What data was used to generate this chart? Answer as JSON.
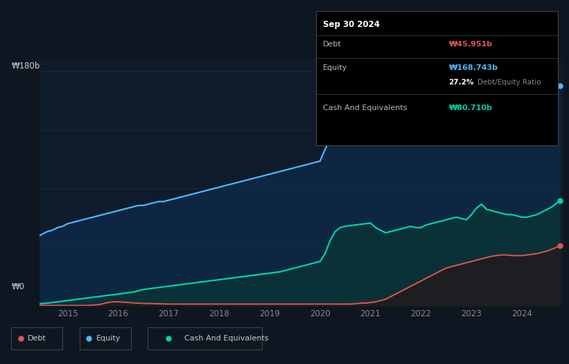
{
  "background_color": "#0e1621",
  "plot_bg_color": "#0d1b2a",
  "y_label_top": "₩180b",
  "y_label_bottom": "₩0",
  "x_ticks": [
    2015,
    2016,
    2017,
    2018,
    2019,
    2020,
    2021,
    2022,
    2023,
    2024
  ],
  "tooltip": {
    "date": "Sep 30 2024",
    "debt_label": "Debt",
    "debt_value": "₩45.951b",
    "equity_label": "Equity",
    "equity_value": "₩168.743b",
    "ratio_value": "27.2%",
    "ratio_label": "Debt/Equity Ratio",
    "cash_label": "Cash And Equivalents",
    "cash_value": "₩80.710b"
  },
  "debt_color": "#e05555",
  "equity_color": "#4db8ff",
  "cash_color": "#00d4aa",
  "legend": [
    {
      "label": "Debt",
      "color": "#e05555"
    },
    {
      "label": "Equity",
      "color": "#4db8ff"
    },
    {
      "label": "Cash And Equivalents",
      "color": "#00d4aa"
    }
  ],
  "years": [
    2014.45,
    2014.5,
    2014.6,
    2014.7,
    2014.8,
    2014.9,
    2015.0,
    2015.1,
    2015.2,
    2015.3,
    2015.4,
    2015.5,
    2015.6,
    2015.7,
    2015.8,
    2015.9,
    2016.0,
    2016.1,
    2016.2,
    2016.3,
    2016.4,
    2016.5,
    2016.6,
    2016.7,
    2016.8,
    2016.9,
    2017.0,
    2017.1,
    2017.2,
    2017.3,
    2017.4,
    2017.5,
    2017.6,
    2017.7,
    2017.8,
    2017.9,
    2018.0,
    2018.1,
    2018.2,
    2018.3,
    2018.4,
    2018.5,
    2018.6,
    2018.7,
    2018.8,
    2018.9,
    2019.0,
    2019.1,
    2019.2,
    2019.3,
    2019.4,
    2019.5,
    2019.6,
    2019.7,
    2019.8,
    2019.9,
    2020.0,
    2020.1,
    2020.2,
    2020.3,
    2020.4,
    2020.5,
    2020.6,
    2020.7,
    2020.8,
    2020.9,
    2021.0,
    2021.1,
    2021.2,
    2021.3,
    2021.4,
    2021.5,
    2021.6,
    2021.7,
    2021.8,
    2021.9,
    2022.0,
    2022.1,
    2022.2,
    2022.3,
    2022.4,
    2022.5,
    2022.6,
    2022.7,
    2022.8,
    2022.9,
    2023.0,
    2023.1,
    2023.2,
    2023.3,
    2023.4,
    2023.5,
    2023.6,
    2023.7,
    2023.8,
    2023.9,
    2024.0,
    2024.1,
    2024.2,
    2024.3,
    2024.4,
    2024.5,
    2024.6,
    2024.75
  ],
  "equity": [
    54,
    55,
    57,
    58,
    60,
    61,
    63,
    64,
    65,
    66,
    67,
    68,
    69,
    70,
    71,
    72,
    73,
    74,
    75,
    76,
    77,
    77,
    78,
    79,
    80,
    80,
    81,
    82,
    83,
    84,
    85,
    86,
    87,
    88,
    89,
    90,
    91,
    92,
    93,
    94,
    95,
    96,
    97,
    98,
    99,
    100,
    101,
    102,
    103,
    104,
    105,
    106,
    107,
    108,
    109,
    110,
    111,
    120,
    128,
    132,
    134,
    135,
    136,
    138,
    140,
    142,
    144,
    146,
    148,
    149,
    150,
    151,
    152,
    153,
    154,
    155,
    156,
    157,
    158,
    158,
    159,
    160,
    161,
    162,
    162,
    163,
    163,
    164,
    165,
    165,
    166,
    166,
    166,
    165,
    165,
    165,
    165,
    165,
    166,
    166,
    166,
    167,
    168,
    168.743
  ],
  "debt": [
    0.2,
    0.2,
    0.2,
    0.2,
    0.2,
    0.2,
    0.2,
    0.2,
    0.2,
    0.2,
    0.3,
    0.5,
    0.8,
    1.5,
    2.5,
    3.0,
    3.0,
    2.8,
    2.5,
    2.2,
    2.0,
    1.8,
    1.7,
    1.6,
    1.5,
    1.4,
    1.3,
    1.3,
    1.3,
    1.3,
    1.3,
    1.3,
    1.3,
    1.3,
    1.3,
    1.3,
    1.3,
    1.3,
    1.3,
    1.3,
    1.3,
    1.3,
    1.3,
    1.3,
    1.3,
    1.3,
    1.3,
    1.3,
    1.3,
    1.3,
    1.3,
    1.3,
    1.3,
    1.3,
    1.3,
    1.3,
    1.3,
    1.3,
    1.3,
    1.3,
    1.3,
    1.3,
    1.3,
    1.5,
    2.0,
    2.0,
    2.5,
    3.0,
    4.0,
    5.0,
    7.0,
    9.0,
    11.0,
    13.0,
    15.0,
    17.0,
    19.0,
    21.0,
    23.0,
    25.0,
    27.0,
    29.0,
    30.0,
    31.0,
    32.0,
    33.0,
    34.0,
    35.0,
    36.0,
    37.0,
    38.0,
    38.5,
    39.0,
    39.0,
    38.5,
    38.5,
    38.5,
    39.0,
    39.5,
    40.0,
    41.0,
    42.0,
    43.5,
    45.951
  ],
  "cash": [
    1.5,
    1.8,
    2.0,
    2.5,
    3.0,
    3.5,
    4.0,
    4.5,
    5.0,
    5.5,
    6.0,
    6.5,
    7.0,
    7.5,
    8.0,
    8.5,
    9.0,
    9.5,
    10.0,
    10.5,
    11.5,
    12.5,
    13.0,
    13.5,
    14.0,
    14.5,
    15.0,
    15.5,
    16.0,
    16.5,
    17.0,
    17.5,
    18.0,
    18.5,
    19.0,
    19.5,
    20.0,
    20.5,
    21.0,
    21.5,
    22.0,
    22.5,
    23.0,
    23.5,
    24.0,
    24.5,
    25.0,
    25.5,
    26.0,
    27.0,
    28.0,
    29.0,
    30.0,
    31.0,
    32.0,
    33.0,
    34.0,
    40.0,
    50.0,
    57.0,
    60.0,
    61.0,
    61.5,
    62.0,
    62.5,
    63.0,
    63.5,
    60.0,
    58.0,
    56.0,
    57.0,
    58.0,
    59.0,
    60.0,
    61.0,
    60.0,
    60.0,
    62.0,
    63.0,
    64.0,
    65.0,
    66.0,
    67.0,
    68.0,
    67.0,
    66.0,
    70.0,
    75.0,
    78.0,
    74.0,
    73.0,
    72.0,
    71.0,
    70.0,
    70.0,
    69.0,
    68.0,
    68.0,
    69.0,
    70.0,
    72.0,
    74.0,
    76.0,
    80.71
  ]
}
